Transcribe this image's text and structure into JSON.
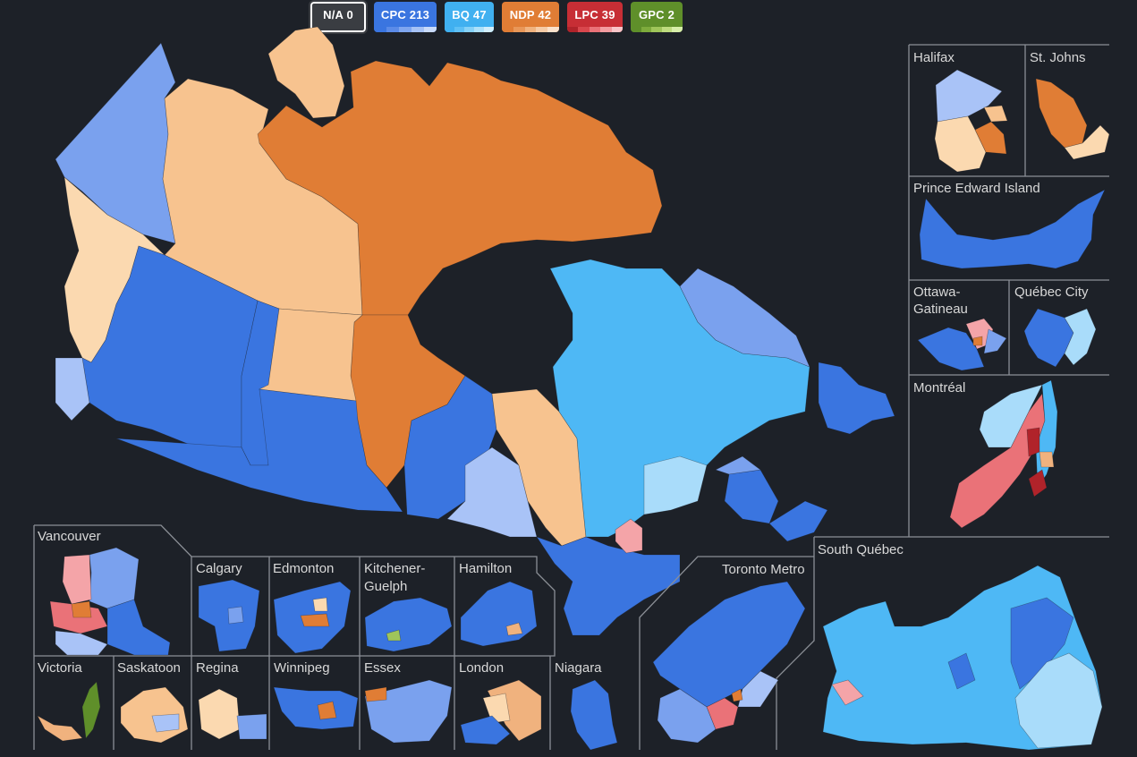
{
  "legend": [
    {
      "label": "N/A 0",
      "color": "#3a3d42",
      "shades": []
    },
    {
      "label": "CPC 213",
      "color": "#3a75e0",
      "shades": [
        "#3a75e0",
        "#5b8be8",
        "#7fa6ef",
        "#a6c2f5",
        "#c9dbfa"
      ]
    },
    {
      "label": "BQ 47",
      "color": "#40b0f0",
      "shades": [
        "#40b0f0",
        "#5ec0f5",
        "#86d2f8",
        "#aee1fa",
        "#d2eefc"
      ]
    },
    {
      "label": "NDP 42",
      "color": "#e07d35",
      "shades": [
        "#e07d35",
        "#e99758",
        "#f0b27e",
        "#f6cba6",
        "#fbe2cc"
      ]
    },
    {
      "label": "LPC 39",
      "color": "#c72e35",
      "shades": [
        "#b0232a",
        "#d9474d",
        "#ea7278",
        "#f39ca0",
        "#f9c5c8"
      ]
    },
    {
      "label": "GPC 2",
      "color": "#5f8f2a",
      "shades": [
        "#5f8f2a",
        "#7eab3c",
        "#9fc55a",
        "#bedc7f",
        "#d8eeaa"
      ]
    }
  ],
  "colors": {
    "background": "#1d2128",
    "frame": "#8b8f96",
    "cpc_dark": "#3a75e0",
    "cpc_mid": "#7aa1ee",
    "cpc_light": "#a9c3f7",
    "bq": "#4eb8f5",
    "bq_light": "#a9dcfa",
    "ndp": "#e07d35",
    "ndp_light": "#f7c38f",
    "ndp_pale": "#fbd9b0",
    "lpc": "#ea7278",
    "lpc_dark": "#b0232a",
    "lpc_pale": "#f4a4a8",
    "gpc": "#5f8f2a"
  },
  "insets": {
    "halifax": "Halifax",
    "st_johns": "St. Johns",
    "pei": "Prince Edward Island",
    "ottawa_1": "Ottawa-",
    "ottawa_2": "Gatineau",
    "quebec_city": "Québec City",
    "montreal": "Montréal",
    "south_quebec": "South Québec",
    "toronto": "Toronto Metro",
    "vancouver": "Vancouver",
    "calgary": "Calgary",
    "edmonton": "Edmonton",
    "kitchener_1": "Kitchener-",
    "kitchener_2": "Guelph",
    "hamilton": "Hamilton",
    "victoria": "Victoria",
    "saskatoon": "Saskatoon",
    "regina": "Regina",
    "winnipeg": "Winnipeg",
    "essex": "Essex",
    "london": "London",
    "niagara": "Niagara"
  }
}
